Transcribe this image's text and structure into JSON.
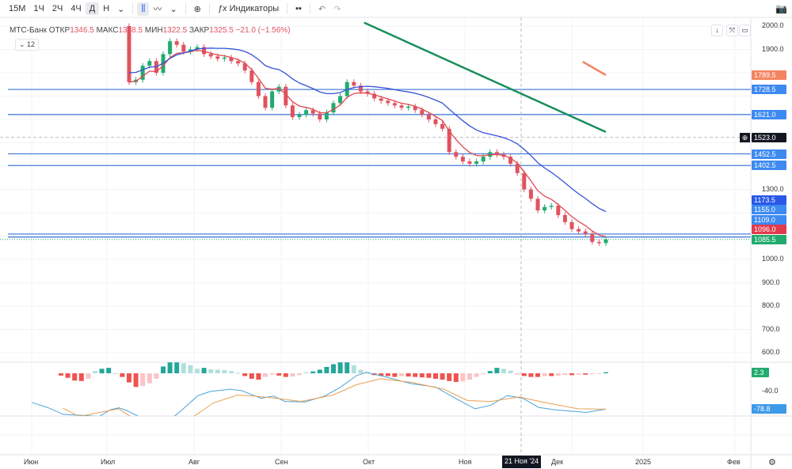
{
  "toolbar": {
    "intervals": [
      "15М",
      "1Ч",
      "2Ч",
      "4Ч",
      "Д",
      "Н"
    ],
    "active_interval": "Д",
    "indicators_label": "Индикаторы"
  },
  "legend": {
    "symbol": "МТС-Банк",
    "open_label": "ОТКР",
    "open": "1346.5",
    "high_label": "МАКС",
    "high": "1358.5",
    "low_label": "МИН",
    "low": "1322.5",
    "close_label": "ЗАКР",
    "close": "1325.5",
    "change": "−21.0 (−1.56%)",
    "collapse_count": "12"
  },
  "crosshair": {
    "date": "21 Ноя '24",
    "price": "1523.0"
  },
  "time_labels": [
    "Июн",
    "Июл",
    "Авг",
    "Сен",
    "Окт",
    "Ноя",
    "Дек",
    "2025",
    "Фев"
  ],
  "price_ticks": [
    "2000.0",
    "1900.0",
    "1300.0",
    "1000.0",
    "900.0",
    "800.0",
    "700.0",
    "600.0"
  ],
  "macd_ticks": [
    "-40.0"
  ],
  "badges": [
    {
      "text": "1789.5",
      "color": "#f4845f"
    },
    {
      "text": "1728.5",
      "color": "#3d8af0"
    },
    {
      "text": "1621.0",
      "color": "#3d8af0"
    },
    {
      "text": "1523.0",
      "color": "#131722"
    },
    {
      "text": "1452.5",
      "color": "#3d8af0"
    },
    {
      "text": "1402.5",
      "color": "#3d8af0"
    },
    {
      "text": "1173.5",
      "color": "#2958e8"
    },
    {
      "text": "1155.0",
      "color": "#3d8af0"
    },
    {
      "text": "1109.0",
      "color": "#3d8af0"
    },
    {
      "text": "1096.0",
      "color": "#e23a4d"
    },
    {
      "text": "1085.5",
      "color": "#22ab6e"
    },
    {
      "text": "2.3",
      "color": "#22ab6e"
    },
    {
      "text": "-78.8",
      "color": "#3d9ae8"
    }
  ],
  "chart_data": {
    "type": "candlestick",
    "price_range": [
      600,
      2000
    ],
    "first_open": 2000,
    "closes": [
      1760,
      1770,
      1830,
      1850,
      1800,
      1880,
      1935,
      1920,
      1890,
      1900,
      1910,
      1880,
      1870,
      1860,
      1865,
      1850,
      1840,
      1810,
      1760,
      1700,
      1650,
      1720,
      1740,
      1660,
      1610,
      1620,
      1640,
      1625,
      1600,
      1630,
      1670,
      1700,
      1760,
      1745,
      1720,
      1710,
      1690,
      1680,
      1670,
      1660,
      1650,
      1655,
      1640,
      1620,
      1600,
      1580,
      1560,
      1460,
      1440,
      1420,
      1410,
      1420,
      1440,
      1460,
      1450,
      1440,
      1410,
      1370,
      1300,
      1260,
      1210,
      1225,
      1230,
      1190,
      1160,
      1130,
      1120,
      1110,
      1075,
      1070,
      1085.5
    ],
    "horizontal_levels": [
      1728.5,
      1621.0,
      1452.5,
      1402.5,
      1109.0,
      1096.0
    ],
    "last_price": 1085.5,
    "ma_fast_color": "#e0474f",
    "ma_slow_color": "#3552d8",
    "long_ma": {
      "color": "#1a8f5a",
      "points": [
        [
          34.5,
          2015
        ],
        [
          70,
          1546
        ]
      ]
    },
    "orange_ma": {
      "color": "#f4845f",
      "points": [
        [
          66.6,
          1847
        ],
        [
          70,
          1790
        ]
      ]
    },
    "macd": {
      "range": [
        -92,
        25
      ],
      "hist_start": -10,
      "hist": [
        -5,
        -10,
        -16,
        -17,
        -12,
        5,
        10,
        12,
        0,
        -8,
        -20,
        -30,
        -28,
        -22,
        -12,
        15,
        24,
        24,
        22,
        18,
        10,
        12,
        9,
        8,
        7,
        5,
        1,
        -6,
        -12,
        -14,
        -8,
        -3,
        -5,
        -8,
        -7,
        -4,
        2,
        4,
        8,
        14,
        20,
        24,
        24,
        18,
        8,
        3,
        -4,
        -6,
        -6,
        -8,
        -6,
        -7,
        -8,
        -9,
        -10,
        -12,
        -14,
        -17,
        -19,
        -18,
        -14,
        -8,
        -2,
        5,
        12,
        10,
        6,
        -3,
        -6,
        -8,
        -8,
        -6,
        -6,
        -5,
        -4,
        -4,
        -3,
        -3,
        -2,
        -1,
        2.3
      ],
      "macd_line": [
        [
          -14.3,
          -64
        ],
        [
          -12,
          -75
        ],
        [
          -9.7,
          -90
        ],
        [
          -4.4,
          -95
        ],
        [
          -2.7,
          -80
        ],
        [
          -1.5,
          -76
        ],
        [
          -0.3,
          -82
        ],
        [
          1.4,
          -95
        ],
        [
          6.6,
          -95
        ],
        [
          7.8,
          -80
        ],
        [
          10.1,
          -49
        ],
        [
          11.9,
          -40
        ],
        [
          14.8,
          -35
        ],
        [
          16.5,
          -38
        ],
        [
          19.4,
          -55
        ],
        [
          21.2,
          -50
        ],
        [
          22.9,
          -62
        ],
        [
          25.8,
          -63
        ],
        [
          28.7,
          -50
        ],
        [
          31,
          -31
        ],
        [
          33.4,
          -5
        ],
        [
          34.8,
          2
        ],
        [
          36.9,
          -5
        ],
        [
          41.5,
          -23
        ],
        [
          45,
          -30
        ],
        [
          47.9,
          -55
        ],
        [
          50.8,
          -78
        ],
        [
          53.1,
          -70
        ],
        [
          55.5,
          -49
        ],
        [
          57.8,
          -55
        ],
        [
          60.1,
          -75
        ],
        [
          62.4,
          -80
        ],
        [
          67.1,
          -86
        ],
        [
          70,
          -78.8
        ]
      ],
      "signal_line": [
        [
          -9.7,
          -77
        ],
        [
          -7.3,
          -95
        ],
        [
          -3.3,
          -83
        ],
        [
          -1.5,
          -78
        ],
        [
          0.2,
          -95
        ],
        [
          9.5,
          -95
        ],
        [
          12.4,
          -65
        ],
        [
          15.9,
          -48
        ],
        [
          18.3,
          -50
        ],
        [
          21.7,
          -55
        ],
        [
          25.2,
          -62
        ],
        [
          29.9,
          -48
        ],
        [
          33.4,
          -25
        ],
        [
          36.9,
          -12
        ],
        [
          41.5,
          -20
        ],
        [
          46.2,
          -35
        ],
        [
          49.7,
          -60
        ],
        [
          53.1,
          -62
        ],
        [
          57.2,
          -52
        ],
        [
          61.3,
          -65
        ],
        [
          65.9,
          -78
        ],
        [
          70,
          -79
        ]
      ]
    }
  }
}
